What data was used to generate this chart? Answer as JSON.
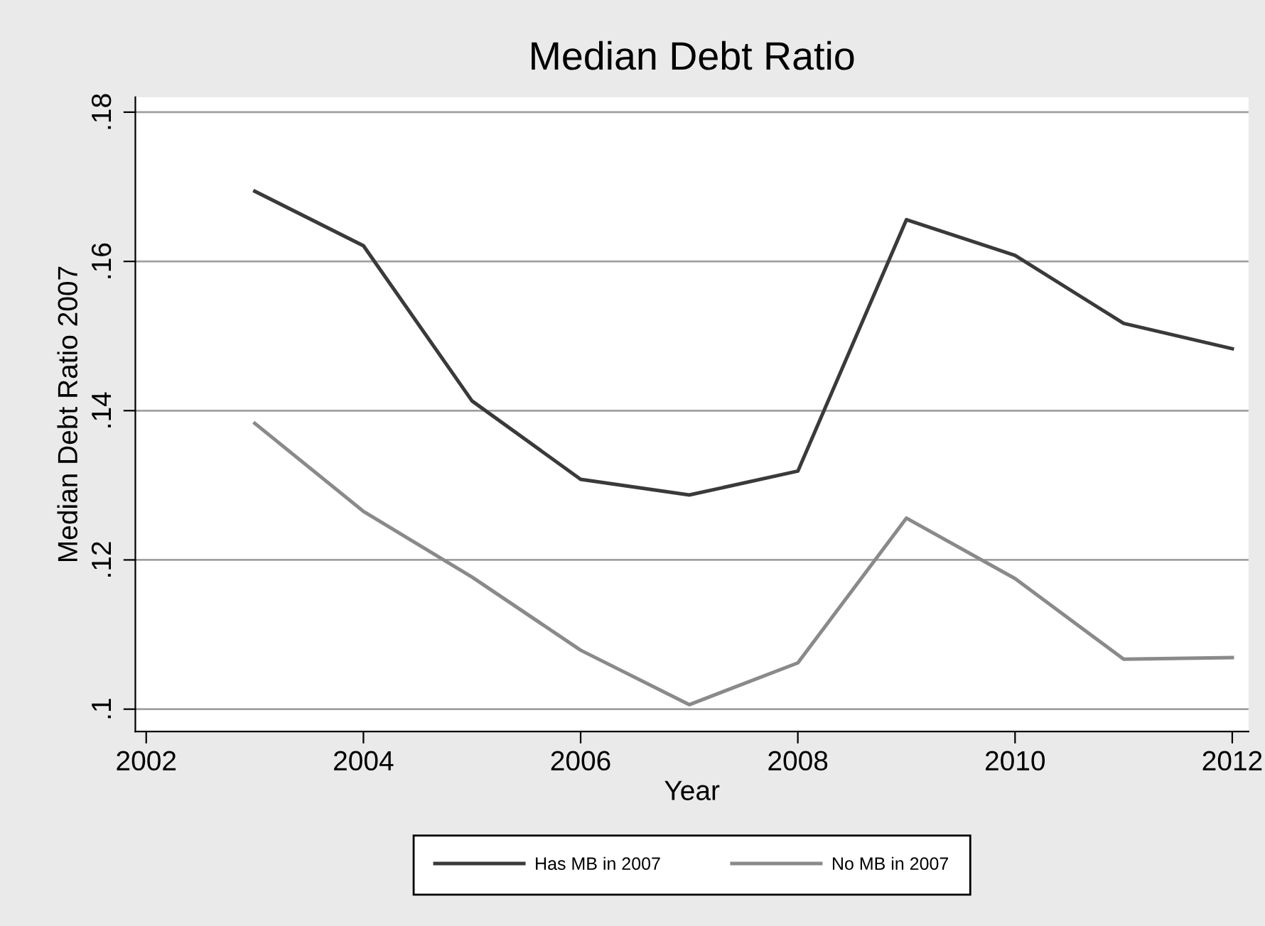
{
  "chart_data": {
    "type": "line",
    "title": "Median Debt Ratio",
    "xlabel": "Year",
    "ylabel": "Median Debt Ratio 2007",
    "x": [
      2003,
      2004,
      2005,
      2006,
      2007,
      2008,
      2009,
      2010,
      2011,
      2012
    ],
    "series": [
      {
        "name": "Has MB in 2007",
        "color": "#3a3a3a",
        "values": [
          0.1694,
          0.1621,
          0.1413,
          0.1308,
          0.1287,
          0.1319,
          0.1656,
          0.1608,
          0.1517,
          0.1483
        ]
      },
      {
        "name": "No MB in 2007",
        "color": "#8a8a8a",
        "values": [
          0.1383,
          0.1265,
          0.1177,
          0.1079,
          0.1006,
          0.1062,
          0.1256,
          0.1175,
          0.1067,
          0.1069
        ]
      }
    ],
    "xlim": [
      2001.9,
      2012.15
    ],
    "xticks": [
      2002,
      2004,
      2006,
      2008,
      2010,
      2012
    ],
    "ylim": [
      0.097,
      0.182
    ],
    "yticks": [
      {
        "value": 0.1,
        "label": ".1"
      },
      {
        "value": 0.12,
        "label": ".12"
      },
      {
        "value": 0.14,
        "label": ".14"
      },
      {
        "value": 0.16,
        "label": ".16"
      },
      {
        "value": 0.18,
        "label": ".18"
      }
    ],
    "grid": "y",
    "legend": "bottom",
    "marker": "none",
    "line_style": "solid"
  }
}
